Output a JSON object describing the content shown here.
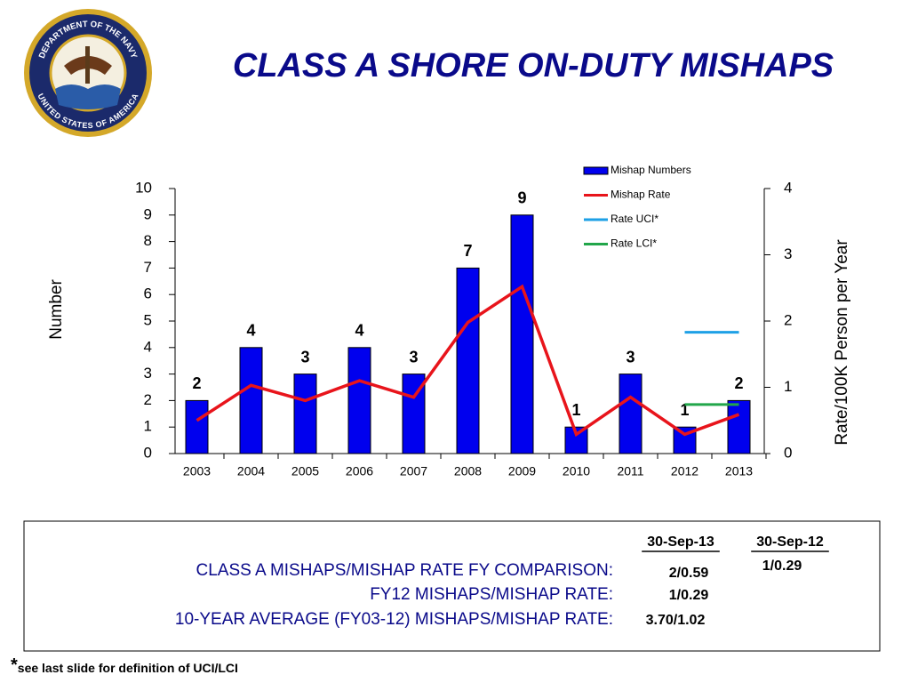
{
  "header": {
    "title": "CLASS A SHORE ON-DUTY MISHAPS",
    "seal_top": "DEPARTMENT OF THE NAVY",
    "seal_bottom": "UNITED STATES OF AMERICA"
  },
  "chart_data": {
    "type": "bar",
    "categories": [
      "2003",
      "2004",
      "2005",
      "2006",
      "2007",
      "2008",
      "2009",
      "2010",
      "2011",
      "2012",
      "2013"
    ],
    "ylabel": "Number",
    "y2label": "Rate/100K Person per Year",
    "ylim": [
      0,
      10
    ],
    "yticks": [
      0,
      1,
      2,
      3,
      4,
      5,
      6,
      7,
      8,
      9,
      10
    ],
    "y2lim": [
      0,
      4
    ],
    "y2ticks": [
      0,
      1,
      2,
      3,
      4
    ],
    "legend": "top-right",
    "series": [
      {
        "name": "Mishap Numbers",
        "type": "bar",
        "color": "#0000ee",
        "values": [
          2,
          4,
          3,
          4,
          3,
          7,
          9,
          1,
          3,
          1,
          2
        ]
      },
      {
        "name": "Mishap Rate",
        "type": "line",
        "axis": "y2",
        "color": "#e8141b",
        "values": [
          0.5,
          1.03,
          0.8,
          1.1,
          0.85,
          1.98,
          2.52,
          0.29,
          0.85,
          0.29,
          0.59
        ]
      },
      {
        "name": "Rate UCI*",
        "type": "line",
        "axis": "y2",
        "color": "#1ea0e6",
        "values": [
          null,
          null,
          null,
          null,
          null,
          null,
          null,
          null,
          null,
          1.83,
          1.83
        ]
      },
      {
        "name": "Rate LCI*",
        "type": "line",
        "axis": "y2",
        "color": "#22a64a",
        "values": [
          null,
          null,
          null,
          null,
          null,
          null,
          null,
          null,
          null,
          0.74,
          0.74
        ]
      }
    ]
  },
  "comparison": {
    "headers": [
      "30-Sep-13",
      "30-Sep-12"
    ],
    "rows": [
      {
        "label": "CLASS A MISHAPS/MISHAP RATE FY COMPARISON:",
        "values": [
          "2/0.59",
          "1/0.29"
        ]
      },
      {
        "label": "FY12 MISHAPS/MISHAP RATE:",
        "values": [
          "1/0.29"
        ]
      },
      {
        "label": "10-YEAR AVERAGE (FY03-12) MISHAPS/MISHAP RATE:",
        "values": [
          "3.70/1.02"
        ]
      }
    ]
  },
  "footnote": {
    "mark": "*",
    "text": "see last slide for definition of UCI/LCI"
  }
}
